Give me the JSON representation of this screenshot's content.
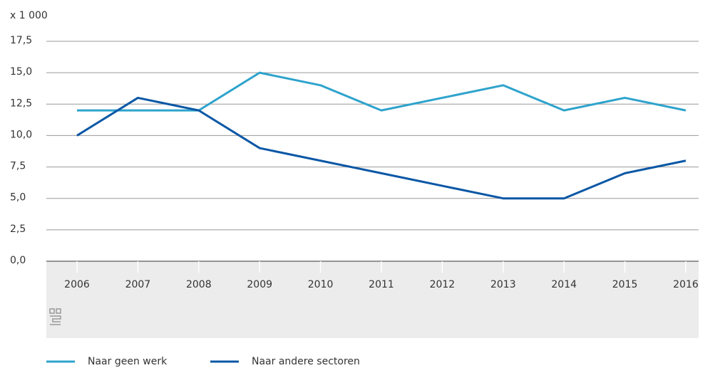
{
  "chart_data": {
    "type": "line",
    "y_axis_label": "x 1 000",
    "categories": [
      "2006",
      "2007",
      "2008",
      "2009",
      "2010",
      "2011",
      "2012",
      "2013",
      "2014",
      "2015",
      "2016"
    ],
    "series": [
      {
        "name": "Naar geen werk",
        "color": "#2ea3cc",
        "values": [
          12,
          12,
          12,
          15,
          14,
          12,
          13,
          14,
          12,
          13,
          12
        ]
      },
      {
        "name": "Naar andere sectoren",
        "color": "#0a57a5",
        "values": [
          10,
          13,
          12,
          9,
          8,
          7,
          6,
          5,
          5,
          7,
          8
        ]
      }
    ],
    "ylim": [
      0,
      17.5
    ],
    "yticks": [
      {
        "value": 0,
        "label": "0,0"
      },
      {
        "value": 2.5,
        "label": "2,5"
      },
      {
        "value": 5,
        "label": "5,0"
      },
      {
        "value": 7.5,
        "label": "7,5"
      },
      {
        "value": 10,
        "label": "10,0"
      },
      {
        "value": 12.5,
        "label": "12,5"
      },
      {
        "value": 15,
        "label": "15,0"
      },
      {
        "value": 17.5,
        "label": "17,5"
      }
    ],
    "grid": true,
    "legend": "bottom-left"
  }
}
